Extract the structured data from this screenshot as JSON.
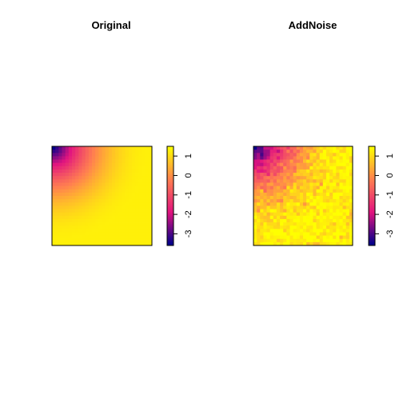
{
  "chart_data": [
    {
      "type": "heatmap",
      "title": "Original",
      "grid": false,
      "legend": "right",
      "colorscale": [
        "#00008b",
        "#e2147f",
        "#ff7f50",
        "#ffff00"
      ],
      "zlim": [
        -3.6,
        1.5
      ],
      "colorbar_ticks": [
        1,
        0,
        -1,
        -2,
        -3
      ],
      "matrix_size": [
        30,
        30
      ],
      "corner_values": {
        "top-left": -3.6,
        "top-right": 0.5,
        "bottom-left": 0.5,
        "bottom-right": 1.3
      },
      "noise_sd": 0
    },
    {
      "type": "heatmap",
      "title": "AddNoise",
      "grid": false,
      "legend": "right",
      "colorscale": [
        "#00008b",
        "#e2147f",
        "#ff7f50",
        "#ffff00"
      ],
      "zlim": [
        -3.6,
        1.5
      ],
      "colorbar_ticks": [
        1,
        0,
        -1,
        -2,
        -3
      ],
      "matrix_size": [
        30,
        30
      ],
      "corner_values": {
        "top-left": -3.6,
        "top-right": 0.5,
        "bottom-left": 0.5,
        "bottom-right": 1.3
      },
      "noise_sd": 0.3
    }
  ]
}
